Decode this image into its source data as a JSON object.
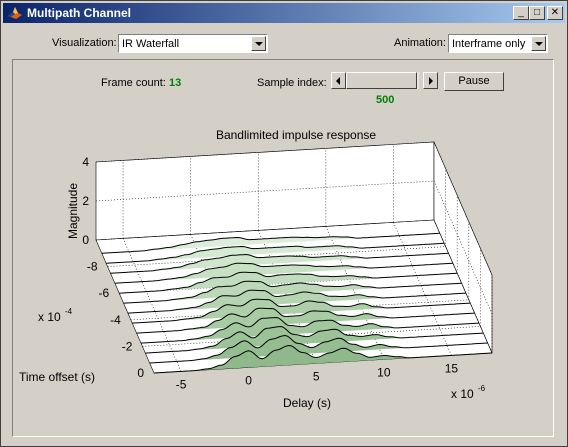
{
  "window": {
    "title": "Multipath Channel",
    "minimize_glyph": "_",
    "maximize_glyph": "□",
    "close_glyph": "✕"
  },
  "controls": {
    "visualization_label": "Visualization:",
    "visualization_value": "IR Waterfall",
    "animation_label": "Animation:",
    "animation_value": "Interframe only",
    "frame_count_label": "Frame count:",
    "frame_count_value": "13",
    "sample_index_label": "Sample index:",
    "sample_index_value": "500",
    "sample_index_slider_fraction": 0.04,
    "pause_label": "Pause"
  },
  "chart_data": {
    "type": "area",
    "title": "Bandlimited impulse response",
    "zlabel": "Magnitude",
    "xlabel": "Delay (s)",
    "ylabel": "Time offset (s)",
    "x_exponent_label": "x 10",
    "x_exponent": "-6",
    "y_exponent_label": "x 10",
    "y_exponent": "-4",
    "x_ticks": [
      "-5",
      "0",
      "5",
      "10",
      "15"
    ],
    "y_ticks": [
      "0",
      "-2",
      "-4",
      "-6",
      "-8"
    ],
    "z_ticks": [
      "0",
      "2",
      "4"
    ],
    "xlim": [
      -7,
      18
    ],
    "ylim": [
      -10,
      0
    ],
    "zlim": [
      0,
      4
    ],
    "grid": true,
    "colors": {
      "fill_front": "#8fb98a",
      "fill_back": "#e4f4e2",
      "line": "#000000"
    },
    "delays": [
      -5,
      -4,
      -3,
      -2,
      -1,
      0,
      1,
      2,
      3,
      4,
      5,
      6,
      7,
      8,
      9,
      10,
      11,
      12,
      13,
      14,
      15,
      16,
      17
    ],
    "frames": [
      {
        "time_offset": 0,
        "magnitude": [
          0,
          0,
          0.05,
          0.2,
          0.6,
          0.85,
          0.4,
          0.8,
          1.0,
          0.6,
          0.3,
          0.5,
          0.7,
          0.4,
          0.15,
          0.2,
          0.1,
          0,
          0,
          0,
          0,
          0,
          0
        ]
      },
      {
        "time_offset": -0.75,
        "magnitude": [
          0,
          0,
          0.05,
          0.2,
          0.55,
          0.85,
          0.45,
          0.85,
          1.0,
          0.55,
          0.3,
          0.55,
          0.7,
          0.35,
          0.15,
          0.25,
          0.1,
          0,
          0,
          0,
          0,
          0,
          0
        ]
      },
      {
        "time_offset": -1.5,
        "magnitude": [
          0,
          0,
          0.05,
          0.15,
          0.5,
          0.8,
          0.45,
          0.9,
          0.95,
          0.5,
          0.35,
          0.6,
          0.65,
          0.3,
          0.2,
          0.25,
          0.1,
          0,
          0,
          0,
          0,
          0,
          0
        ]
      },
      {
        "time_offset": -2.25,
        "magnitude": [
          0,
          0,
          0.05,
          0.15,
          0.45,
          0.75,
          0.5,
          0.9,
          0.9,
          0.45,
          0.35,
          0.6,
          0.6,
          0.3,
          0.2,
          0.3,
          0.1,
          0,
          0,
          0,
          0,
          0,
          0
        ]
      },
      {
        "time_offset": -3,
        "magnitude": [
          0,
          0,
          0.05,
          0.1,
          0.4,
          0.7,
          0.5,
          0.9,
          0.85,
          0.4,
          0.4,
          0.6,
          0.55,
          0.3,
          0.2,
          0.3,
          0.1,
          0,
          0,
          0,
          0,
          0,
          0
        ]
      },
      {
        "time_offset": -3.75,
        "magnitude": [
          0,
          0,
          0.05,
          0.1,
          0.35,
          0.65,
          0.55,
          0.85,
          0.8,
          0.4,
          0.4,
          0.6,
          0.5,
          0.25,
          0.2,
          0.3,
          0.1,
          0,
          0,
          0,
          0,
          0,
          0
        ]
      },
      {
        "time_offset": -4.5,
        "magnitude": [
          0,
          0,
          0.05,
          0.1,
          0.3,
          0.6,
          0.55,
          0.8,
          0.75,
          0.4,
          0.45,
          0.55,
          0.45,
          0.25,
          0.2,
          0.25,
          0.1,
          0,
          0,
          0,
          0,
          0,
          0
        ]
      },
      {
        "time_offset": -5.25,
        "magnitude": [
          0,
          0,
          0.05,
          0.1,
          0.3,
          0.55,
          0.55,
          0.75,
          0.7,
          0.4,
          0.45,
          0.5,
          0.4,
          0.25,
          0.2,
          0.25,
          0.1,
          0,
          0,
          0,
          0,
          0,
          0
        ]
      },
      {
        "time_offset": -6,
        "magnitude": [
          0,
          0,
          0.05,
          0.1,
          0.3,
          0.5,
          0.5,
          0.7,
          0.65,
          0.4,
          0.45,
          0.45,
          0.4,
          0.25,
          0.2,
          0.2,
          0.1,
          0,
          0,
          0,
          0,
          0,
          0
        ]
      },
      {
        "time_offset": -6.75,
        "magnitude": [
          0,
          0,
          0.05,
          0.1,
          0.25,
          0.45,
          0.5,
          0.65,
          0.6,
          0.4,
          0.4,
          0.4,
          0.35,
          0.25,
          0.2,
          0.2,
          0.1,
          0,
          0,
          0,
          0,
          0,
          0
        ]
      },
      {
        "time_offset": -7.5,
        "magnitude": [
          0,
          0,
          0.05,
          0.1,
          0.25,
          0.4,
          0.45,
          0.55,
          0.55,
          0.35,
          0.35,
          0.35,
          0.3,
          0.2,
          0.2,
          0.2,
          0.1,
          0,
          0,
          0,
          0,
          0,
          0
        ]
      },
      {
        "time_offset": -8.25,
        "magnitude": [
          0,
          0,
          0.05,
          0.1,
          0.2,
          0.35,
          0.4,
          0.45,
          0.45,
          0.3,
          0.3,
          0.3,
          0.3,
          0.2,
          0.2,
          0.2,
          0.1,
          0,
          0,
          0,
          0,
          0,
          0
        ]
      },
      {
        "time_offset": -9,
        "magnitude": [
          0,
          0,
          0.05,
          0.1,
          0.2,
          0.3,
          0.35,
          0.4,
          0.4,
          0.25,
          0.25,
          0.25,
          0.25,
          0.2,
          0.15,
          0.15,
          0.1,
          0,
          0,
          0,
          0,
          0,
          0
        ]
      }
    ]
  }
}
